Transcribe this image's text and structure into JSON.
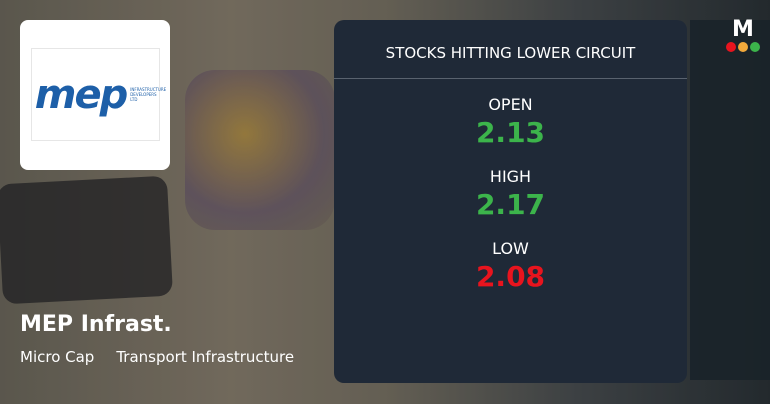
{
  "company": {
    "logo_text": "mep",
    "logo_subtext": "INFRASTRUCTURE DEVELOPERS LTD",
    "name": "MEP Infrast.",
    "cap": "Micro Cap",
    "sector": "Transport Infrastructure"
  },
  "card": {
    "title": "STOCKS HITTING LOWER CIRCUIT",
    "items": [
      {
        "label": "OPEN",
        "value": "2.13",
        "color": "#3cb44b"
      },
      {
        "label": "HIGH",
        "value": "2.17",
        "color": "#3cb44b"
      },
      {
        "label": "LOW",
        "value": "2.08",
        "color": "#e8141e"
      }
    ]
  },
  "brand": {
    "letter": "M",
    "dot_colors": [
      "#e8141e",
      "#f2a93b",
      "#3cb44b"
    ]
  }
}
